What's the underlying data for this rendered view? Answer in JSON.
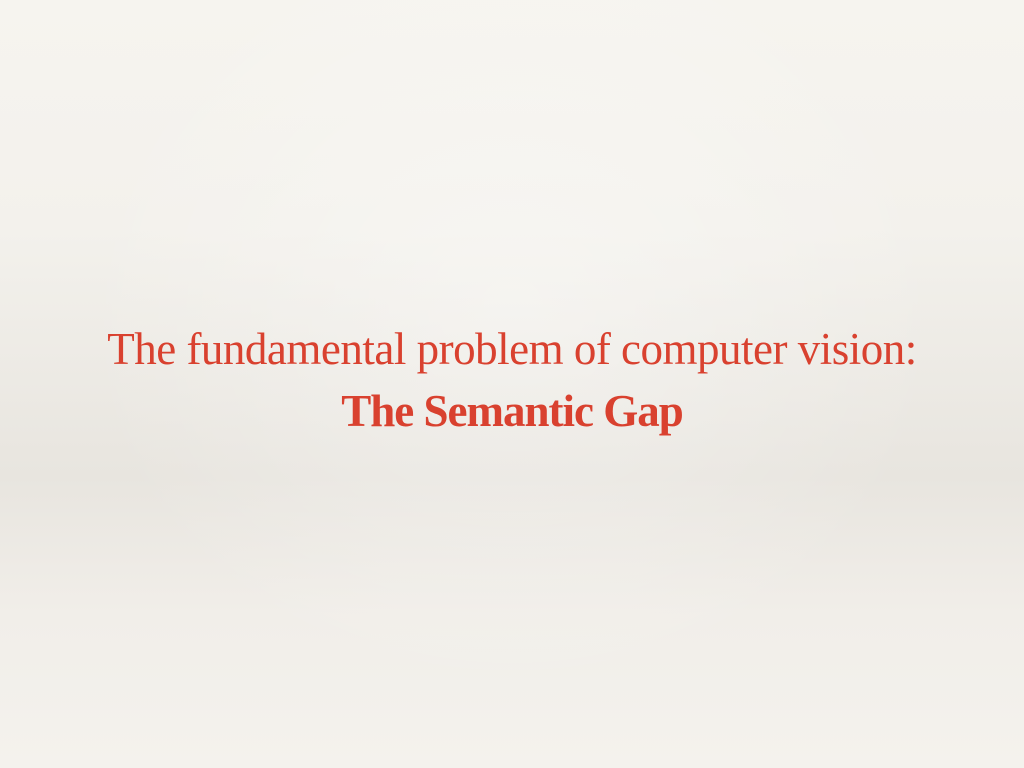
{
  "slide": {
    "line1": "The fundamental problem of computer vision:",
    "line2": "The Semantic Gap"
  },
  "colors": {
    "title": "#d9412f",
    "background": "#f3f1ec"
  }
}
